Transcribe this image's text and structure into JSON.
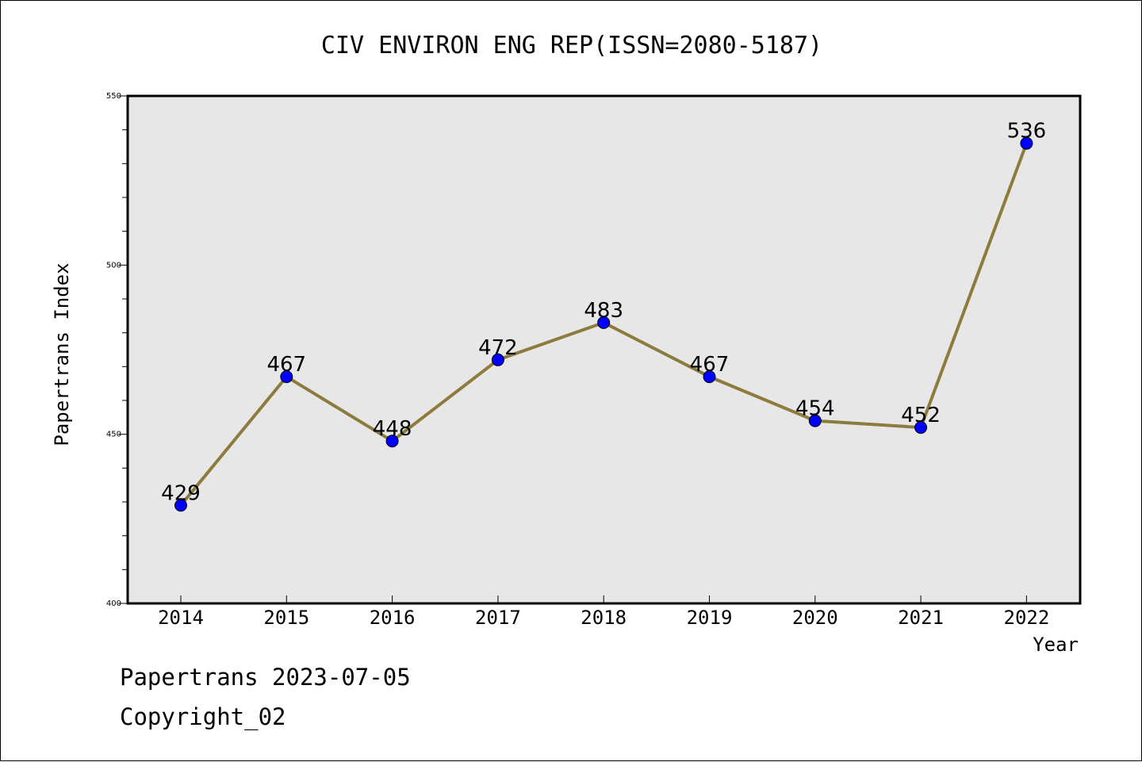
{
  "chart_data": {
    "type": "line",
    "title": "CIV ENVIRON ENG REP(ISSN=2080-5187)",
    "xlabel": "Year",
    "ylabel": "Papertrans Index",
    "categories": [
      "2014",
      "2015",
      "2016",
      "2017",
      "2018",
      "2019",
      "2020",
      "2021",
      "2022"
    ],
    "series": [
      {
        "values": [
          429,
          467,
          448,
          472,
          483,
          467,
          454,
          452,
          536
        ]
      }
    ],
    "data_labels": [
      "429",
      "467",
      "448",
      "472",
      "483",
      "467",
      "454",
      "452",
      "536"
    ],
    "ylim": [
      400,
      550
    ],
    "yticks": [
      "400",
      "450",
      "500",
      "550"
    ],
    "grid": false,
    "legend": "none",
    "colors": {
      "line": "#8c7b3c",
      "marker": "#0000ff",
      "plot_bg": "#e7e7e7"
    }
  },
  "footer": {
    "line1": "Papertrans 2023-07-05",
    "line2": "Copyright_02"
  }
}
